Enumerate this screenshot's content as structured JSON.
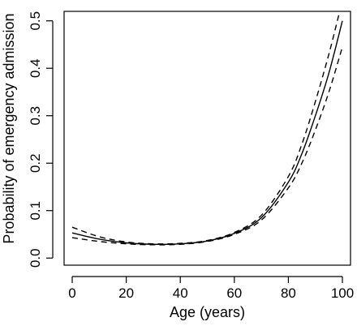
{
  "chart_data": {
    "type": "line",
    "title": "",
    "xlabel": "Age (years)",
    "ylabel": "Probability of emergency admission",
    "xlim": [
      -3,
      103
    ],
    "ylim": [
      -0.015,
      0.52
    ],
    "xticks": [
      0,
      20,
      40,
      60,
      80,
      100
    ],
    "yticks": [
      0.0,
      0.1,
      0.2,
      0.3,
      0.4,
      0.5
    ],
    "ytick_labels": [
      "0.0",
      "0.1",
      "0.2",
      "0.3",
      "0.4",
      "0.5"
    ],
    "grid": false,
    "legend": "none",
    "series": [
      {
        "style": "solid",
        "x": [
          0,
          10,
          20,
          30,
          40,
          50,
          60,
          70,
          80,
          85,
          90,
          95,
          100
        ],
        "y": [
          0.053,
          0.04,
          0.032,
          0.029,
          0.03,
          0.036,
          0.052,
          0.085,
          0.16,
          0.22,
          0.3,
          0.39,
          0.5
        ]
      },
      {
        "style": "dashed",
        "x": [
          0,
          10,
          20,
          30,
          40,
          50,
          60,
          70,
          80,
          85,
          90,
          95,
          99
        ],
        "y": [
          0.065,
          0.045,
          0.034,
          0.03,
          0.031,
          0.037,
          0.054,
          0.09,
          0.172,
          0.24,
          0.33,
          0.43,
          0.52
        ]
      },
      {
        "style": "dashed",
        "x": [
          0,
          10,
          20,
          30,
          40,
          50,
          60,
          70,
          80,
          85,
          90,
          95,
          100
        ],
        "y": [
          0.043,
          0.035,
          0.03,
          0.028,
          0.029,
          0.035,
          0.05,
          0.08,
          0.148,
          0.2,
          0.27,
          0.35,
          0.445
        ]
      }
    ]
  }
}
